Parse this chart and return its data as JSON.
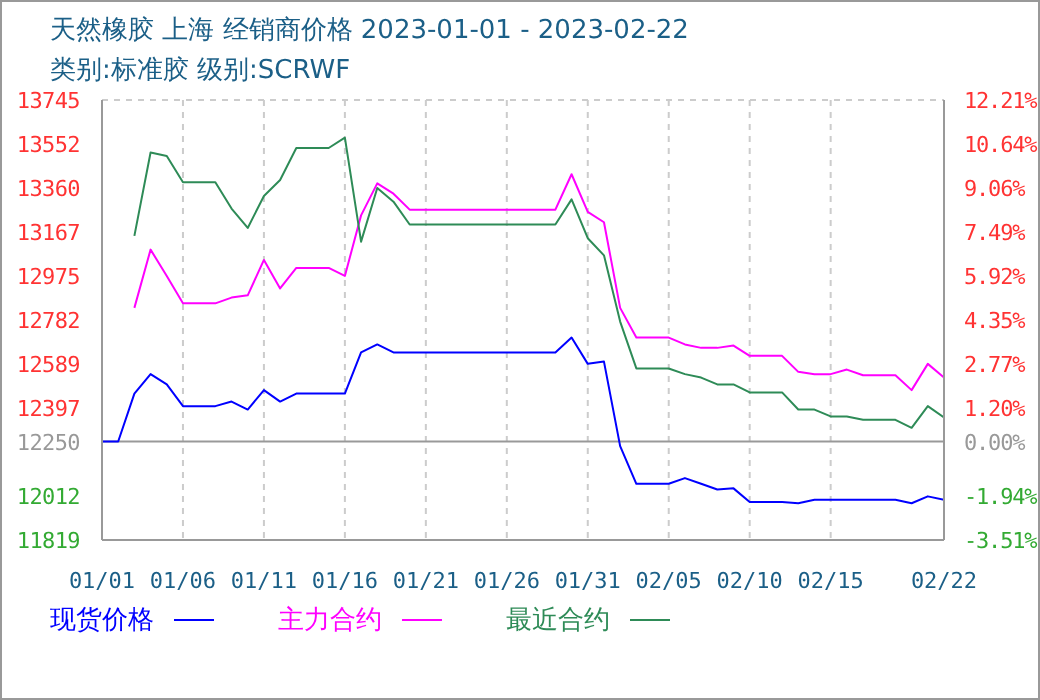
{
  "chart_data": {
    "type": "line",
    "title": "天然橡胶 上海 经销商价格 2023-01-01 - 2023-02-22",
    "subtitle": "类别:标准胶 级别:SCRWF",
    "x": [
      "2023-01-01",
      "2023-01-02",
      "2023-01-03",
      "2023-01-04",
      "2023-01-05",
      "2023-01-06",
      "2023-01-08",
      "2023-01-09",
      "2023-01-10",
      "2023-01-11",
      "2023-01-12",
      "2023-01-13",
      "2023-01-15",
      "2023-01-16",
      "2023-01-17",
      "2023-01-18",
      "2023-01-19",
      "2023-01-20",
      "2023-01-29",
      "2023-01-30",
      "2023-01-31",
      "2023-02-01",
      "2023-02-02",
      "2023-02-03",
      "2023-02-05",
      "2023-02-06",
      "2023-02-07",
      "2023-02-08",
      "2023-02-09",
      "2023-02-10",
      "2023-02-12",
      "2023-02-13",
      "2023-02-14",
      "2023-02-15",
      "2023-02-16",
      "2023-02-17",
      "2023-02-19",
      "2023-02-20",
      "2023-02-21",
      "2023-02-22"
    ],
    "series": [
      {
        "name": "现货价格",
        "color": "#0000ff",
        "values": [
          12250,
          12250,
          12460,
          12545,
          12500,
          12405,
          12405,
          12425,
          12390,
          12475,
          12425,
          12460,
          12460,
          12460,
          12640,
          12675,
          12640,
          12640,
          12640,
          12705,
          12590,
          12600,
          12230,
          12065,
          12065,
          12090,
          12065,
          12040,
          12045,
          11985,
          11985,
          11980,
          11995,
          11995,
          11995,
          11995,
          11995,
          11980,
          12010,
          11995
        ]
      },
      {
        "name": "主力合约",
        "color": "#ff00ff",
        "values": [
          null,
          null,
          12835,
          13090,
          12975,
          12855,
          12855,
          12880,
          12890,
          13045,
          12920,
          13010,
          13010,
          12975,
          13240,
          13380,
          13335,
          13265,
          13265,
          13420,
          13255,
          13210,
          12835,
          12705,
          12705,
          12675,
          12660,
          12660,
          12670,
          12625,
          12625,
          12555,
          12545,
          12545,
          12565,
          12540,
          12540,
          12475,
          12590,
          12530
        ]
      },
      {
        "name": "最近合约",
        "color": "#2e8b57",
        "values": [
          null,
          null,
          13150,
          13515,
          13500,
          13385,
          13385,
          13270,
          13185,
          13325,
          13395,
          13535,
          13535,
          13580,
          13125,
          13360,
          13300,
          13200,
          13200,
          13310,
          13140,
          13065,
          12775,
          12570,
          12570,
          12545,
          12530,
          12500,
          12500,
          12465,
          12465,
          12390,
          12390,
          12360,
          12360,
          12345,
          12345,
          12310,
          12405,
          12355
        ]
      }
    ],
    "xlim": [
      "2023-01-01",
      "2023-02-22"
    ],
    "xticks": [
      {
        "value": "2023-01-01",
        "label": "01/01"
      },
      {
        "value": "2023-01-06",
        "label": "01/06"
      },
      {
        "value": "2023-01-11",
        "label": "01/11"
      },
      {
        "value": "2023-01-16",
        "label": "01/16"
      },
      {
        "value": "2023-01-21",
        "label": "01/21"
      },
      {
        "value": "2023-01-26",
        "label": "01/26"
      },
      {
        "value": "2023-01-31",
        "label": "01/31"
      },
      {
        "value": "2023-02-05",
        "label": "02/05"
      },
      {
        "value": "2023-02-10",
        "label": "02/10"
      },
      {
        "value": "2023-02-15",
        "label": "02/15"
      },
      {
        "value": "2023-02-22",
        "label": "02/22"
      }
    ],
    "ylim": [
      11819,
      13745
    ],
    "yticks": [
      11819,
      12012,
      12250,
      12397,
      12589,
      12782,
      12975,
      13167,
      13360,
      13552,
      13745
    ],
    "y2lim": [
      -3.51,
      12.21
    ],
    "y2ticks": [
      {
        "value": -3.51,
        "label": "-3.51%"
      },
      {
        "value": -1.94,
        "label": "-1.94%"
      },
      {
        "value": 0,
        "label": "0.00%"
      },
      {
        "value": 1.2,
        "label": "1.20%"
      },
      {
        "value": 2.77,
        "label": "2.77%"
      },
      {
        "value": 4.35,
        "label": "4.35%"
      },
      {
        "value": 5.92,
        "label": "5.92%"
      },
      {
        "value": 7.49,
        "label": "7.49%"
      },
      {
        "value": 9.06,
        "label": "9.06%"
      },
      {
        "value": 10.64,
        "label": "10.64%"
      },
      {
        "value": 12.21,
        "label": "12.21%"
      }
    ],
    "ref_lines": [
      {
        "axis": "y",
        "value": 12250,
        "color": "#999999"
      }
    ],
    "grid": true,
    "legend": "bottom"
  }
}
